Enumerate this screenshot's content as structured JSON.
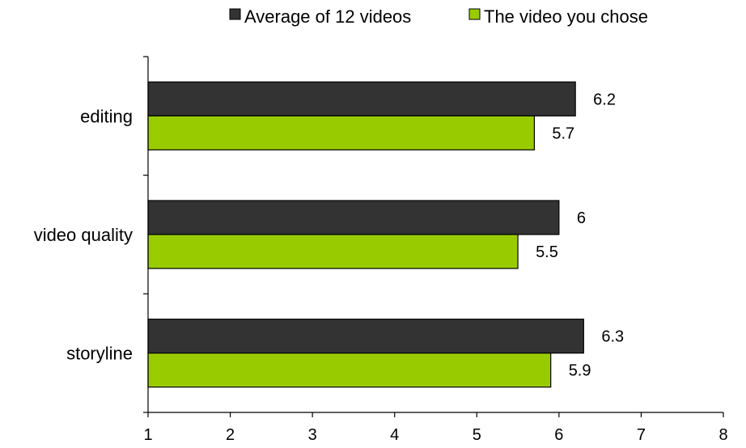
{
  "chart_data": {
    "type": "bar",
    "orientation": "horizontal",
    "categories": [
      "editing",
      "video quality",
      "storyline"
    ],
    "series": [
      {
        "name": "Average of 12 videos",
        "values": [
          6.2,
          6,
          6.3
        ],
        "labels": [
          "6.2",
          "6",
          "6.3"
        ],
        "color": "#333333"
      },
      {
        "name": "The video you chose",
        "values": [
          5.7,
          5.5,
          5.9
        ],
        "labels": [
          "5.7",
          "5.5",
          "5.9"
        ],
        "color": "#99cc00"
      }
    ],
    "xlim": [
      1,
      8
    ],
    "xticks": [
      "1",
      "2",
      "3",
      "4",
      "5",
      "6",
      "7",
      "8"
    ],
    "grid": false,
    "legend_position": "top"
  }
}
